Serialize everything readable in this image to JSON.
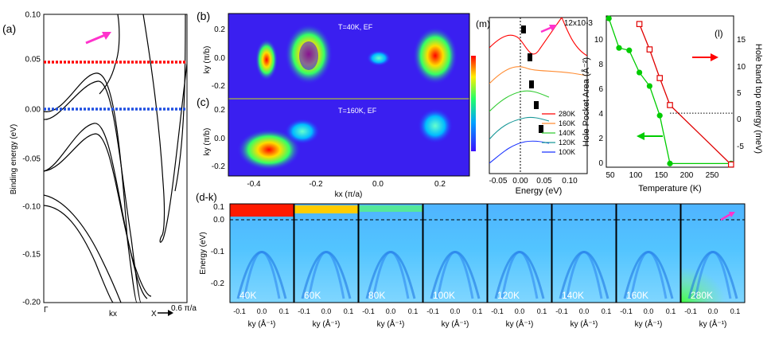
{
  "figure": {
    "colors": {
      "red": "#ff0000",
      "blue": "#1f4fe0",
      "green": "#00cc00",
      "magenta": "#ff33cc",
      "cool": "#00e5ff"
    }
  },
  "panel_a": {
    "label": "(a)",
    "ylabel": "Binding energy (eV)",
    "ytick_labels": [
      "0.10",
      "0.05",
      "0.00",
      "-0.05",
      "-0.10",
      "-0.15",
      "-0.20"
    ],
    "x_start": "Γ",
    "x_mid": "kx",
    "x_end_label": "X",
    "x_end_value": "0.6 π/a"
  },
  "panel_b": {
    "label": "(b)",
    "annotation": "T=40K, EF"
  },
  "panel_c": {
    "label": "(c)",
    "annotation": "T=160K, EF"
  },
  "maps": {
    "ylabel": "ky (π/b)",
    "xlabel": "kx (π/a)",
    "xtick_labels": [
      "-0.4",
      "-0.2",
      "0.0",
      "0.2"
    ],
    "ytick_labels": [
      "0.2",
      "0.0",
      "-0.2"
    ]
  },
  "panel_m": {
    "label": "(m)",
    "xlabel": "Energy (eV)",
    "xtick_labels": [
      "-0.05",
      "0.00",
      "0.05",
      "0.10"
    ],
    "legend": [
      {
        "name": "280K",
        "color": "#ff0000"
      },
      {
        "name": "160K",
        "color": "#ff8c33"
      },
      {
        "name": "140K",
        "color": "#33cc33"
      },
      {
        "name": "120K",
        "color": "#1a9999"
      },
      {
        "name": "100K",
        "color": "#1a33ff"
      }
    ]
  },
  "panel_l": {
    "label": "(l)",
    "ylabel_left": "Hole Pocket Area (Å⁻²)",
    "ylabel_right": "Hole band top energy (meV)",
    "xlabel": "Temperature (K)",
    "left_exponent": "12x10-3",
    "left_ticks": [
      "10",
      "8",
      "6",
      "4",
      "2",
      "0"
    ],
    "right_ticks": [
      "15",
      "10",
      "5",
      "0",
      "-5"
    ],
    "x_ticks": [
      "50",
      "100",
      "150",
      "200",
      "250"
    ]
  },
  "panel_dk": {
    "label": "(d-k)",
    "ylabel": "Energy (eV)",
    "ytick_labels": [
      "0.0",
      "-0.1",
      "-0.2"
    ],
    "xlabel": "ky (Å⁻¹)",
    "xtick_labels": [
      "-0.1",
      "0.0",
      "0.1"
    ],
    "temps": [
      "40K",
      "60K",
      "80K",
      "100K",
      "120K",
      "140K",
      "160K",
      "280K"
    ]
  },
  "chart_data": [
    {
      "type": "line",
      "title": "Hole Pocket Area",
      "xlabel": "Temperature (K)",
      "ylabel": "Hole Pocket Area (Å⁻²)",
      "xlim": [
        35,
        285
      ],
      "ylim": [
        -0.0003,
        0.012
      ],
      "series": [
        {
          "name": "Hole Pocket Area",
          "color": "#00cc00",
          "marker": "circle",
          "x": [
            40,
            60,
            80,
            100,
            120,
            140,
            160,
            280
          ],
          "y": [
            0.0118,
            0.0094,
            0.0092,
            0.0074,
            0.0063,
            0.0039,
            0.0,
            0.0
          ]
        }
      ]
    },
    {
      "type": "line",
      "title": "Hole band top energy",
      "xlabel": "Temperature (K)",
      "ylabel": "Hole band top energy (meV)",
      "xlim": [
        35,
        285
      ],
      "ylim": [
        -10,
        18
      ],
      "series": [
        {
          "name": "Hole band top energy",
          "color": "#e00000",
          "marker": "open-square",
          "x": [
            100,
            120,
            140,
            160,
            280
          ],
          "y": [
            16.5,
            11.8,
            6.5,
            1.5,
            -9.5
          ]
        }
      ]
    }
  ]
}
